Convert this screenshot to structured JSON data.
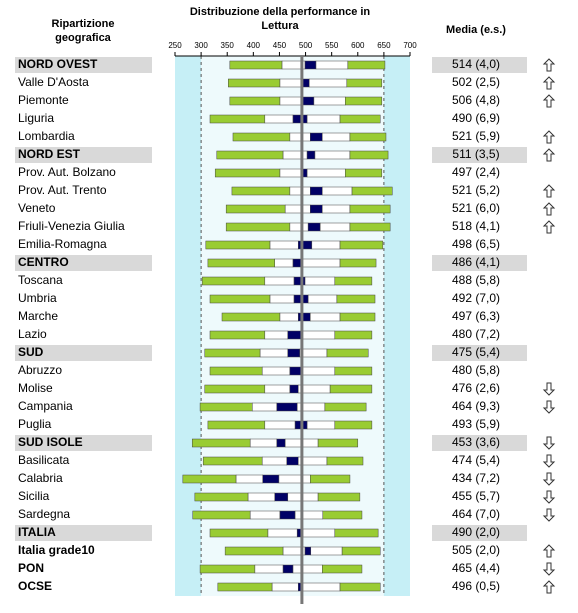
{
  "header": {
    "region": [
      "Ripartizione",
      "geografica"
    ],
    "title": [
      "Distribuzione della performance in",
      "Lettura"
    ],
    "media": "Media (e.s.)"
  },
  "axis": {
    "xlim": [
      250,
      700
    ],
    "xticks": [
      250,
      300,
      350,
      400,
      450,
      500,
      550,
      600,
      650,
      700
    ],
    "dashed": [
      300,
      650
    ],
    "reference": 493
  },
  "rows": [
    {
      "label": "NORD OVEST",
      "style": "group",
      "media": "514 (4,0)",
      "trend": "up",
      "percentiles": [
        355,
        455,
        499,
        520,
        581,
        652
      ]
    },
    {
      "label": "Valle D'Aosta",
      "style": "normal",
      "media": "502 (2,5)",
      "trend": "up",
      "percentiles": [
        352,
        451,
        493,
        507,
        579,
        646
      ]
    },
    {
      "label": "Piemonte",
      "style": "normal",
      "media": "506 (4,8)",
      "trend": "up",
      "percentiles": [
        355,
        451,
        493,
        516,
        576,
        646
      ]
    },
    {
      "label": "Liguria",
      "style": "normal",
      "media": "490 (6,9)",
      "percentiles": [
        317,
        422,
        476,
        503,
        566,
        643
      ]
    },
    {
      "label": "Lombardia",
      "style": "normal",
      "media": "521 (5,9)",
      "trend": "up",
      "percentiles": [
        361,
        470,
        509,
        532,
        585,
        654
      ]
    },
    {
      "label": "NORD EST",
      "style": "group",
      "media": "511 (3,5)",
      "trend": "up",
      "percentiles": [
        330,
        457,
        503,
        518,
        585,
        658
      ]
    },
    {
      "label": "Prov. Aut. Bolzano",
      "style": "normal",
      "media": "497 (2,4)",
      "percentiles": [
        327,
        451,
        491,
        503,
        576,
        646
      ]
    },
    {
      "label": "Prov. Aut. Trento",
      "style": "normal",
      "media": "521 (5,2)",
      "trend": "up",
      "percentiles": [
        359,
        470,
        509,
        532,
        589,
        666
      ]
    },
    {
      "label": "Veneto",
      "style": "normal",
      "media": "521 (6,0)",
      "trend": "up",
      "percentiles": [
        348,
        461,
        509,
        532,
        585,
        662
      ]
    },
    {
      "label": "Friuli-Venezia Giulia",
      "style": "normal",
      "media": "518 (4,1)",
      "trend": "up",
      "percentiles": [
        348,
        470,
        505,
        528,
        585,
        662
      ]
    },
    {
      "label": "Emilia-Romagna",
      "style": "normal",
      "media": "498 (6,5)",
      "percentiles": [
        309,
        432,
        486,
        512,
        566,
        648
      ]
    },
    {
      "label": "CENTRO",
      "style": "group",
      "media": "486 (4,1)",
      "percentiles": [
        313,
        441,
        476,
        493,
        566,
        635
      ]
    },
    {
      "label": "Toscana",
      "style": "normal",
      "media": "488 (5,8)",
      "percentiles": [
        302,
        422,
        478,
        499,
        556,
        627
      ]
    },
    {
      "label": "Umbria",
      "style": "normal",
      "media": "492 (7,0)",
      "percentiles": [
        317,
        432,
        478,
        505,
        560,
        633
      ]
    },
    {
      "label": "Marche",
      "style": "normal",
      "media": "497 (6,3)",
      "percentiles": [
        340,
        451,
        486,
        509,
        566,
        633
      ]
    },
    {
      "label": "Lazio",
      "style": "normal",
      "media": "480 (7,2)",
      "percentiles": [
        317,
        422,
        466,
        493,
        556,
        627
      ]
    },
    {
      "label": "SUD",
      "style": "group",
      "media": "475 (5,4)",
      "percentiles": [
        307,
        413,
        466,
        489,
        541,
        620
      ]
    },
    {
      "label": "Abruzzo",
      "style": "normal",
      "media": "480 (5,8)",
      "percentiles": [
        317,
        417,
        470,
        493,
        556,
        627
      ]
    },
    {
      "label": "Molise",
      "style": "normal",
      "media": "476 (2,6)",
      "trend": "down",
      "percentiles": [
        307,
        422,
        470,
        486,
        547,
        627
      ]
    },
    {
      "label": "Campania",
      "style": "normal",
      "media": "464 (9,3)",
      "trend": "down",
      "percentiles": [
        298,
        398,
        445,
        484,
        537,
        616
      ]
    },
    {
      "label": "Puglia",
      "style": "normal",
      "media": "493 (5,9)",
      "percentiles": [
        313,
        422,
        480,
        503,
        556,
        627
      ]
    },
    {
      "label": "SUD ISOLE",
      "style": "group",
      "media": "453 (3,6)",
      "trend": "down",
      "percentiles": [
        283,
        394,
        445,
        461,
        524,
        600
      ]
    },
    {
      "label": "Basilicata",
      "style": "normal",
      "media": "474 (5,4)",
      "trend": "down",
      "percentiles": [
        304,
        417,
        464,
        486,
        541,
        610
      ]
    },
    {
      "label": "Calabria",
      "style": "normal",
      "media": "434 (7,2)",
      "trend": "down",
      "percentiles": [
        265,
        367,
        418,
        449,
        509,
        585
      ]
    },
    {
      "label": "Sicilia",
      "style": "normal",
      "media": "455 (5,7)",
      "trend": "down",
      "percentiles": [
        288,
        390,
        441,
        466,
        524,
        604
      ]
    },
    {
      "label": "Sardegna",
      "style": "normal",
      "media": "464 (7,0)",
      "trend": "down",
      "percentiles": [
        284,
        394,
        451,
        480,
        533,
        608
      ]
    },
    {
      "label": "ITALIA",
      "style": "group",
      "media": "490 (2,0)",
      "percentiles": [
        317,
        428,
        484,
        495,
        556,
        639
      ]
    },
    {
      "label": "Italia grade10",
      "style": "bold",
      "media": "505 (2,0)",
      "trend": "up",
      "percentiles": [
        346,
        457,
        499,
        510,
        570,
        643
      ]
    },
    {
      "label": "PON",
      "style": "bold",
      "media": "465 (4,4)",
      "trend": "down",
      "percentiles": [
        298,
        403,
        457,
        476,
        532,
        608
      ]
    },
    {
      "label": "OCSE",
      "style": "bold",
      "media": "496 (0,5)",
      "trend": "up",
      "percentiles": [
        332,
        436,
        486,
        493,
        566,
        643
      ]
    }
  ]
}
